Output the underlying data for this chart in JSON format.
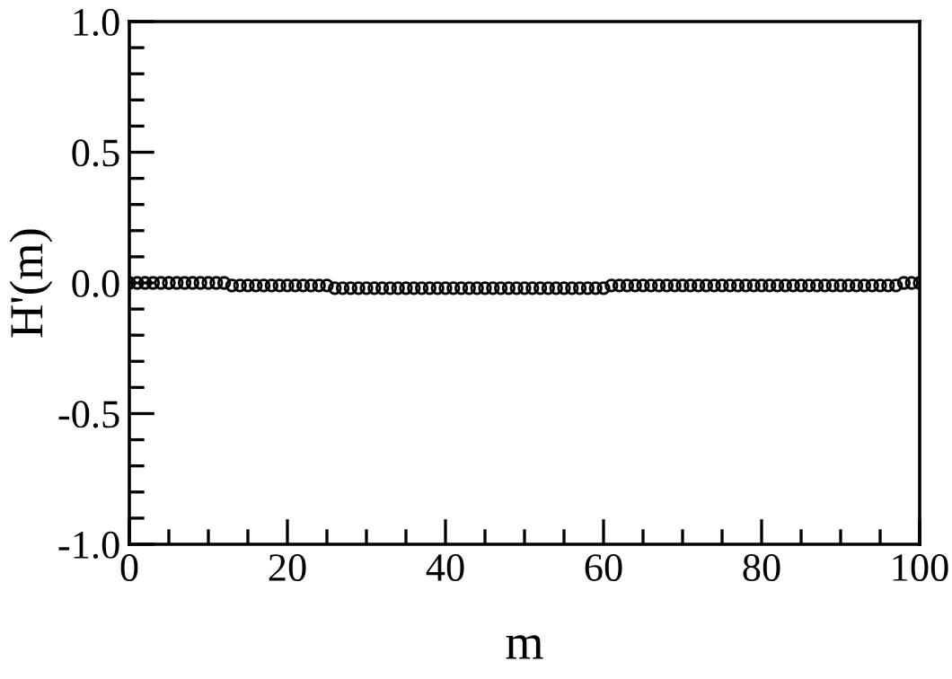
{
  "chart_data": {
    "type": "scatter",
    "xlabel": "m",
    "ylabel": "H'(m)",
    "x": [
      0,
      1,
      2,
      3,
      4,
      5,
      6,
      7,
      8,
      9,
      10,
      11,
      12,
      13,
      14,
      15,
      16,
      17,
      18,
      19,
      20,
      21,
      22,
      23,
      24,
      25,
      26,
      27,
      28,
      29,
      30,
      31,
      32,
      33,
      34,
      35,
      36,
      37,
      38,
      39,
      40,
      41,
      42,
      43,
      44,
      45,
      46,
      47,
      48,
      49,
      50,
      51,
      52,
      53,
      54,
      55,
      56,
      57,
      58,
      59,
      60,
      61,
      62,
      63,
      64,
      65,
      66,
      67,
      68,
      69,
      70,
      71,
      72,
      73,
      74,
      75,
      76,
      77,
      78,
      79,
      80,
      81,
      82,
      83,
      84,
      85,
      86,
      87,
      88,
      89,
      90,
      91,
      92,
      93,
      94,
      95,
      96,
      97,
      98,
      99,
      100
    ],
    "series": [
      {
        "color": "#000000",
        "values": [
          0,
          0,
          0,
          0,
          0,
          0,
          0,
          0,
          0,
          0,
          0,
          0,
          0,
          -0.01,
          -0.01,
          -0.01,
          -0.01,
          -0.01,
          -0.01,
          -0.01,
          -0.01,
          -0.01,
          -0.01,
          -0.01,
          -0.01,
          -0.01,
          -0.02,
          -0.02,
          -0.02,
          -0.02,
          -0.02,
          -0.02,
          -0.02,
          -0.02,
          -0.02,
          -0.02,
          -0.02,
          -0.02,
          -0.02,
          -0.02,
          -0.02,
          -0.02,
          -0.02,
          -0.02,
          -0.02,
          -0.02,
          -0.02,
          -0.02,
          -0.02,
          -0.02,
          -0.02,
          -0.02,
          -0.02,
          -0.02,
          -0.02,
          -0.02,
          -0.02,
          -0.02,
          -0.02,
          -0.02,
          -0.02,
          -0.01,
          -0.01,
          -0.01,
          -0.01,
          -0.01,
          -0.01,
          -0.01,
          -0.01,
          -0.01,
          -0.01,
          -0.01,
          -0.01,
          -0.01,
          -0.01,
          -0.01,
          -0.01,
          -0.01,
          -0.01,
          -0.01,
          -0.01,
          -0.01,
          -0.01,
          -0.01,
          -0.01,
          -0.01,
          -0.01,
          -0.01,
          -0.01,
          -0.01,
          -0.01,
          -0.01,
          -0.01,
          -0.01,
          -0.01,
          -0.01,
          -0.01,
          -0.01,
          0,
          0,
          0
        ]
      }
    ],
    "marker": "circle",
    "grid": false,
    "legend": false,
    "xlim": [
      0,
      100
    ],
    "xticks": [
      0,
      20,
      40,
      60,
      80,
      100
    ],
    "ylim": [
      -1.0,
      1.0
    ],
    "yticks": [
      {
        "value": -1.0,
        "label": "-1.0"
      },
      {
        "value": -0.5,
        "label": "-0.5"
      },
      {
        "value": 0.0,
        "label": "0.0"
      },
      {
        "value": 0.5,
        "label": "0.5"
      },
      {
        "value": 1.0,
        "label": "1.0"
      }
    ]
  }
}
